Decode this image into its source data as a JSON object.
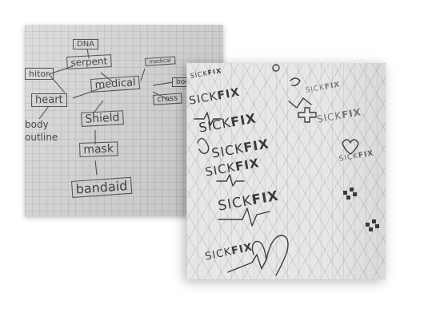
{
  "mind_map": {
    "nodes": {
      "dna": "DNA",
      "serpent": "serpent",
      "medical": "medical",
      "heart": "heart",
      "shield": "Shield",
      "mask": "mask",
      "bandaid": "bandaid",
      "cross": "cross",
      "body": "body",
      "outline": "outline",
      "left_top": "hitor",
      "medical_related": "medical",
      "book": "boo"
    }
  },
  "logo_sketches": {
    "word_a": "SICK",
    "word_b": "FIX"
  }
}
